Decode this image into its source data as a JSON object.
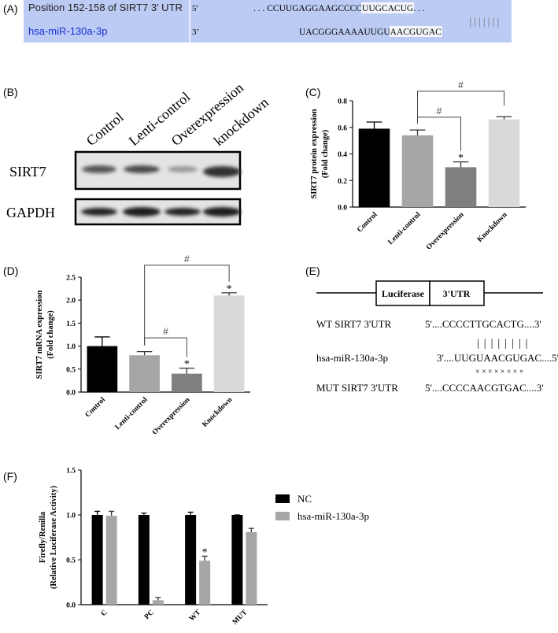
{
  "panel_labels": [
    "(A)",
    "(B)",
    "(C)",
    "(D)",
    "(E)",
    "(F)"
  ],
  "alignment": {
    "target_label": "Position 152-158 of SIRT7 3' UTR",
    "target_end": "5'",
    "target_seq": [
      ". . . CCUUGAGGAAGCCCC",
      "UUGCACUG",
      ". . ."
    ],
    "mirna_label": "hsa-miR-130a-3p",
    "mirna_end": "3’",
    "mirna_seq": [
      "UACGGGAAAAUUGU",
      "AACGUGAC"
    ],
    "pairing": "|||||||"
  },
  "western_blot": {
    "lanes": [
      "Control",
      "Lenti-control",
      "Overexpression",
      "knockdown"
    ],
    "rows": [
      "SIRT7",
      "GAPDH"
    ]
  },
  "construct": {
    "boxes": [
      "Luciferase",
      "3'UTR"
    ],
    "rows": [
      {
        "name": "WT SIRT7 3'UTR",
        "seq": "5'....CCCCTTGCACTG....3'"
      },
      {
        "name": "hsa-miR-130a-3p",
        "seq": "3'....UUGUAACGUGAC....5'"
      },
      {
        "name": "MUT SIRT7 3'UTR",
        "seq": "5'....CCCCAACGTGAC....3'"
      }
    ],
    "pairs": "||||||||",
    "mismatches": "××××××××"
  },
  "chart_data": [
    {
      "type": "bar",
      "ylabel": [
        "SIRT7 protein expression",
        "(Fold change)"
      ],
      "categories": [
        "Control",
        "Lenti-control",
        "Overexpression",
        "Knockdown"
      ],
      "values": [
        0.59,
        0.54,
        0.3,
        0.66
      ],
      "errors": [
        0.05,
        0.04,
        0.04,
        0.02
      ],
      "colors": [
        "#000000",
        "#a6a6a6",
        "#7f7f7f",
        "#d9d9d9"
      ],
      "ylim": [
        0,
        0.8
      ],
      "yticks": [
        {
          "value": 0,
          "label": "0.0"
        },
        0.2,
        0.4,
        0.6,
        0.8
      ],
      "stars": [
        {
          "label": "*",
          "category": "Overexpression"
        }
      ],
      "brackets": [
        {
          "label": "#",
          "between": [
            "Lenti-control",
            "Overexpression"
          ]
        },
        {
          "label": "#",
          "between": [
            "Lenti-control",
            "Knockdown"
          ]
        }
      ]
    },
    {
      "type": "bar",
      "ylabel": [
        "SIRT7 mRNA expression",
        "(Fold change)"
      ],
      "categories": [
        "Control",
        "Lenti-control",
        "Overexpression",
        "Knockdown"
      ],
      "values": [
        1.0,
        0.8,
        0.4,
        2.1
      ],
      "errors": [
        0.2,
        0.08,
        0.12,
        0.06
      ],
      "colors": [
        "#000000",
        "#a6a6a6",
        "#7f7f7f",
        "#d9d9d9"
      ],
      "ylim": [
        0,
        2.5
      ],
      "yticks": [
        {
          "value": 0,
          "label": "0.0"
        },
        0.5,
        {
          "value": 1,
          "label": "1.0"
        },
        1.5,
        {
          "value": 2,
          "label": "2.0"
        },
        2.5
      ],
      "stars": [
        {
          "label": "*",
          "category": "Overexpression"
        },
        {
          "label": "*",
          "category": "Knockdown"
        }
      ],
      "brackets": [
        {
          "label": "#",
          "between": [
            "Lenti-control",
            "Overexpression"
          ]
        },
        {
          "label": "#",
          "between": [
            "Lenti-control",
            "Knockdown"
          ]
        }
      ]
    },
    {
      "type": "grouped_bar",
      "ylabel": [
        "Firefly/Renilla",
        "(Relative Luciferase Activity)"
      ],
      "categories": [
        "C",
        "PC",
        "WT",
        "MUT"
      ],
      "series": [
        {
          "name": "NC",
          "color": "#000000",
          "values": [
            1.0,
            1.0,
            1.0,
            1.0
          ],
          "errors": [
            0.04,
            0.02,
            0.03,
            0.0
          ]
        },
        {
          "name": "hsa-miR-130a-3p",
          "color": "#a6a6a6",
          "values": [
            0.99,
            0.05,
            0.49,
            0.81
          ],
          "errors": [
            0.05,
            0.03,
            0.05,
            0.04
          ]
        }
      ],
      "ylim": [
        0,
        1.5
      ],
      "yticks": [
        {
          "value": 0,
          "label": "0.0"
        },
        0.5,
        {
          "value": 1,
          "label": "1.0"
        },
        1.5
      ],
      "stars": [
        {
          "label": "*",
          "category": "WT",
          "series": "hsa-miR-130a-3p"
        }
      ],
      "brackets": [],
      "legend": "upper right"
    }
  ]
}
